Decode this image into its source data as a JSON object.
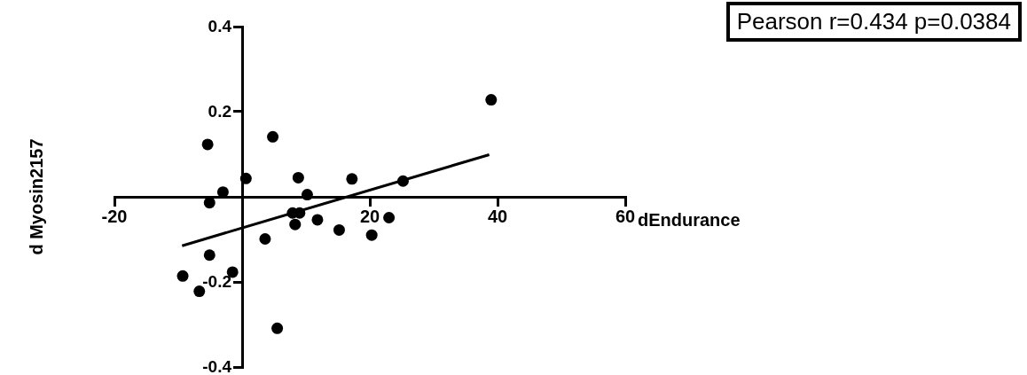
{
  "chart_data": {
    "type": "scatter",
    "xlabel": "dEndurance",
    "ylabel": "d Myosin2157",
    "annotations": [
      "Pearson r=0.434 p=0.0384"
    ],
    "xlim": [
      -20,
      60
    ],
    "ylim": [
      -0.4,
      0.4
    ],
    "xticks": [
      -20,
      20,
      40,
      60
    ],
    "yticks": [
      0.4,
      0.2,
      -0.2,
      -0.4
    ],
    "grid": false,
    "legend": false,
    "marker": "circle",
    "series": [
      {
        "color": "#000000",
        "x": [
          39.0,
          -5.4,
          4.8,
          0.6,
          -3.0,
          -5.1,
          8.8,
          10.2,
          17.2,
          25.2,
          7.9,
          9.0,
          11.8,
          8.3,
          3.6,
          15.2,
          20.3,
          23.0,
          -5.1,
          -1.5,
          -9.3,
          -6.7,
          5.5
        ],
        "values": [
          0.228,
          0.123,
          0.141,
          0.043,
          0.011,
          -0.014,
          0.045,
          0.005,
          0.042,
          0.037,
          -0.038,
          -0.038,
          -0.054,
          -0.065,
          -0.099,
          -0.078,
          -0.09,
          -0.049,
          -0.137,
          -0.177,
          -0.186,
          -0.222,
          -0.309
        ]
      },
      {
        "type": "line",
        "marker": "none",
        "color": "#000000",
        "x": [
          -9.4,
          38.7
        ],
        "values": [
          -0.115,
          0.099
        ]
      }
    ]
  }
}
